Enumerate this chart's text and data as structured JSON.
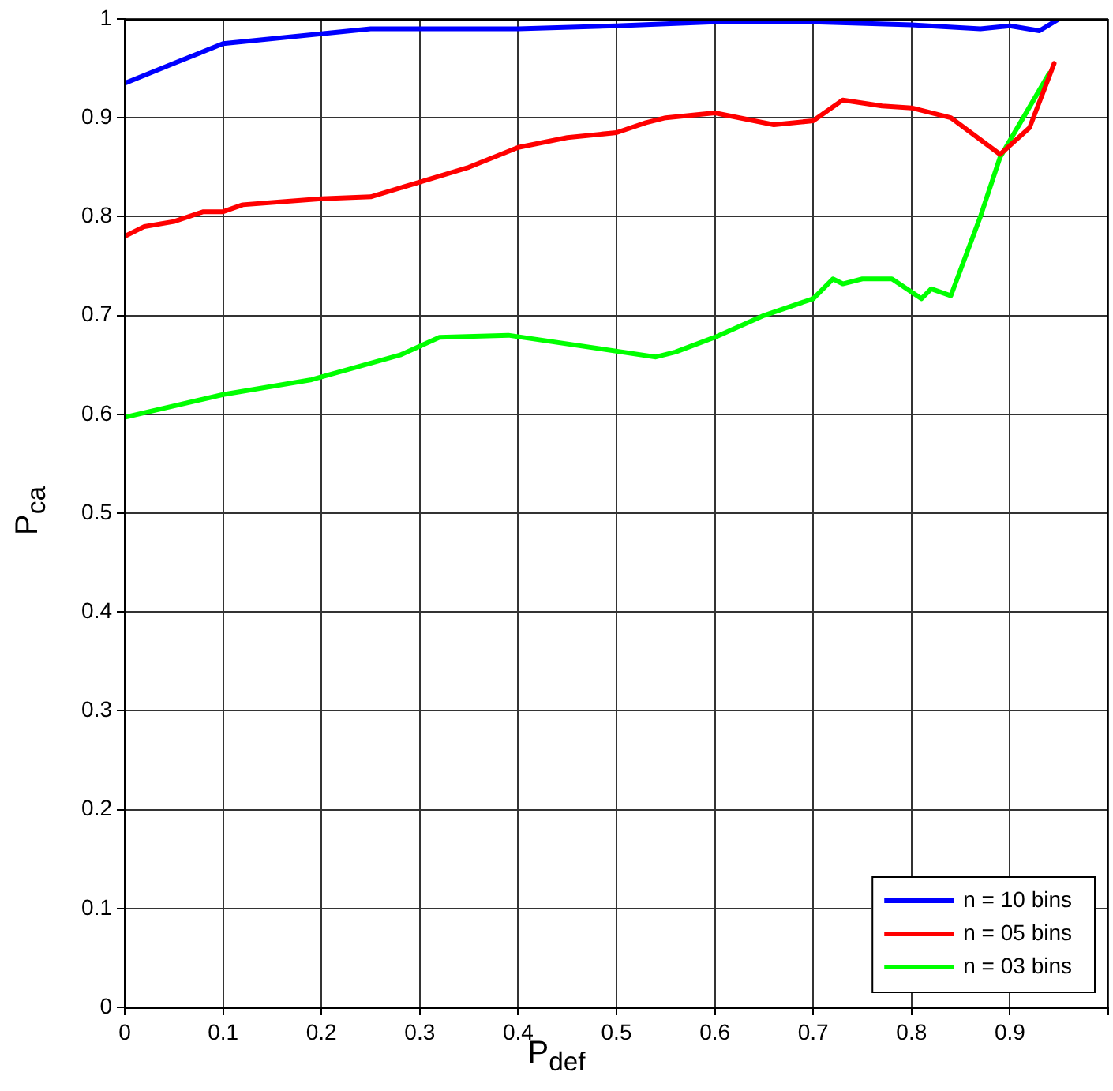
{
  "chart_data": {
    "type": "line",
    "xlabel": "P$_{def}$",
    "ylabel": "P$_{ca}$",
    "xlim": [
      0,
      1
    ],
    "ylim": [
      0,
      1
    ],
    "xticks": [
      0,
      0.1,
      0.2,
      0.3,
      0.4,
      0.5,
      0.6,
      0.7,
      0.8,
      0.9,
      {
        "value": 1,
        "label": null
      }
    ],
    "yticks": [
      0,
      0.1,
      0.2,
      0.3,
      0.4,
      0.5,
      0.6,
      0.7,
      0.8,
      0.9,
      1
    ],
    "grid": true,
    "legend": "bottom right",
    "marker": "none",
    "line_style": "solid",
    "series": [
      {
        "name": "n = 10 bins",
        "color": "#0000ff",
        "x": [
          0,
          0.05,
          0.1,
          0.2,
          0.25,
          0.3,
          0.4,
          0.5,
          0.6,
          0.7,
          0.8,
          0.87,
          0.9,
          0.93,
          0.95,
          1.0
        ],
        "values": [
          0.935,
          0.955,
          0.975,
          0.985,
          0.99,
          0.99,
          0.99,
          0.993,
          0.997,
          0.997,
          0.994,
          0.99,
          0.993,
          0.988,
          1.0,
          1.0
        ]
      },
      {
        "name": "n = 05 bins",
        "color": "#ff0000",
        "x": [
          0,
          0.02,
          0.05,
          0.08,
          0.1,
          0.12,
          0.2,
          0.25,
          0.3,
          0.35,
          0.4,
          0.45,
          0.5,
          0.53,
          0.55,
          0.6,
          0.66,
          0.7,
          0.73,
          0.77,
          0.8,
          0.84,
          0.89,
          0.92,
          0.945
        ],
        "values": [
          0.78,
          0.79,
          0.795,
          0.805,
          0.805,
          0.812,
          0.818,
          0.82,
          0.835,
          0.85,
          0.87,
          0.88,
          0.885,
          0.895,
          0.9,
          0.905,
          0.893,
          0.897,
          0.918,
          0.912,
          0.91,
          0.9,
          0.863,
          0.89,
          0.955
        ]
      },
      {
        "name": "n = 03 bins",
        "color": "#00ff00",
        "x": [
          0,
          0.1,
          0.19,
          0.28,
          0.32,
          0.39,
          0.54,
          0.56,
          0.6,
          0.65,
          0.7,
          0.72,
          0.73,
          0.75,
          0.78,
          0.81,
          0.82,
          0.84,
          0.87,
          0.89,
          0.94
        ],
        "values": [
          0.597,
          0.62,
          0.635,
          0.66,
          0.678,
          0.68,
          0.658,
          0.663,
          0.678,
          0.7,
          0.717,
          0.737,
          0.732,
          0.737,
          0.737,
          0.717,
          0.727,
          0.72,
          0.8,
          0.86,
          0.945
        ]
      }
    ]
  }
}
